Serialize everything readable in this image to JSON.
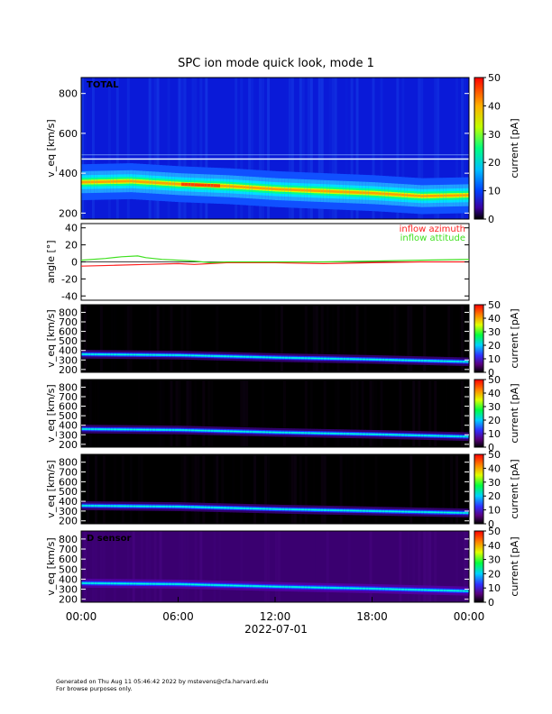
{
  "title": "SPC ion mode quick look, mode 1",
  "footer": {
    "line1": "Generated on Thu Aug 11 05:46:42 2022 by mstevens@cfa.harvard.edu",
    "line2": "For browse purposes only."
  },
  "chart_data": [
    {
      "type": "heatmap",
      "panel_label": "TOTAL",
      "ylabel": "v_eq [km/s]",
      "ylim": [
        170,
        880
      ],
      "yticks": [
        200,
        400,
        600,
        800
      ],
      "colorbar": {
        "label": "current [pA]",
        "ticks": [
          0,
          10,
          20,
          30,
          40,
          50
        ],
        "range": [
          0,
          50
        ],
        "colormap": "rainbow"
      },
      "background": "blue",
      "x": [
        "00:00",
        "06:00",
        "12:00",
        "18:00",
        "00:00"
      ],
      "peak_track_kms": [
        [
          0,
          355
        ],
        [
          3,
          360
        ],
        [
          6,
          345
        ],
        [
          9,
          335
        ],
        [
          12,
          320
        ],
        [
          15,
          310
        ],
        [
          18,
          300
        ],
        [
          21,
          285
        ],
        [
          24,
          290
        ]
      ]
    },
    {
      "type": "line",
      "ylabel": "angle [°]",
      "ylim": [
        -45,
        45
      ],
      "yticks": [
        -40,
        -20,
        0,
        20,
        40
      ],
      "legend": [
        "inflow azimuth",
        "inflow attitude"
      ],
      "legend_position": "top-right",
      "series": [
        {
          "name": "inflow azimuth",
          "color": "#ff2020",
          "x_hours": [
            0,
            2,
            4,
            6,
            7,
            8,
            9,
            12,
            15,
            18,
            21,
            24
          ],
          "values": [
            -5,
            -4,
            -3,
            -2,
            -3,
            -2,
            -1,
            -1,
            -2,
            -1,
            0,
            0
          ]
        },
        {
          "name": "inflow attitude",
          "color": "#40e020",
          "x_hours": [
            0,
            1.5,
            2.5,
            3.5,
            4,
            5,
            6,
            7,
            8,
            9,
            12,
            15,
            18,
            21,
            24
          ],
          "values": [
            2,
            4,
            6,
            7,
            5,
            3,
            2,
            1,
            -1,
            0,
            0,
            0,
            1,
            2,
            3
          ]
        }
      ]
    },
    {
      "type": "heatmap",
      "panel_label": "",
      "ylabel": "v_eq [km/s]",
      "ylim": [
        170,
        880
      ],
      "yticks": [
        200,
        300,
        400,
        500,
        600,
        700,
        800
      ],
      "colorbar": {
        "label": "current [pA]",
        "ticks": [
          0,
          10,
          20,
          30,
          40,
          50
        ],
        "range": [
          0,
          50
        ],
        "colormap": "heat"
      },
      "background": "black",
      "peak_track_kms": [
        [
          0,
          360
        ],
        [
          6,
          350
        ],
        [
          12,
          325
        ],
        [
          18,
          305
        ],
        [
          24,
          280
        ]
      ]
    },
    {
      "type": "heatmap",
      "panel_label": "",
      "ylabel": "v_eq [km/s]",
      "ylim": [
        170,
        880
      ],
      "yticks": [
        200,
        300,
        400,
        500,
        600,
        700,
        800
      ],
      "colorbar": {
        "label": "current [pA]",
        "ticks": [
          0,
          10,
          20,
          30,
          40,
          50
        ],
        "range": [
          0,
          50
        ],
        "colormap": "heat"
      },
      "background": "black",
      "peak_track_kms": [
        [
          0,
          360
        ],
        [
          6,
          350
        ],
        [
          12,
          325
        ],
        [
          18,
          305
        ],
        [
          24,
          280
        ]
      ]
    },
    {
      "type": "heatmap",
      "panel_label": "",
      "ylabel": "v_eq [km/s]",
      "ylim": [
        170,
        880
      ],
      "yticks": [
        200,
        300,
        400,
        500,
        600,
        700,
        800
      ],
      "colorbar": {
        "label": "current [pA]",
        "ticks": [
          0,
          10,
          20,
          30,
          40,
          50
        ],
        "range": [
          0,
          50
        ],
        "colormap": "heat"
      },
      "background": "black",
      "peak_track_kms": [
        [
          0,
          355
        ],
        [
          6,
          345
        ],
        [
          12,
          320
        ],
        [
          18,
          300
        ],
        [
          24,
          280
        ]
      ]
    },
    {
      "type": "heatmap",
      "panel_label": "D sensor",
      "ylabel": "v_eq [km/s]",
      "ylim": [
        170,
        880
      ],
      "yticks": [
        200,
        300,
        400,
        500,
        600,
        700,
        800
      ],
      "colorbar": {
        "label": "current [pA]",
        "ticks": [
          0,
          10,
          20,
          30,
          40,
          50
        ],
        "range": [
          0,
          50
        ],
        "colormap": "heat"
      },
      "background": "purple",
      "peak_track_kms": [
        [
          0,
          360
        ],
        [
          6,
          350
        ],
        [
          12,
          325
        ],
        [
          18,
          305
        ],
        [
          24,
          280
        ]
      ]
    }
  ],
  "xaxis": {
    "ticks": [
      "00:00",
      "06:00",
      "12:00",
      "18:00",
      "00:00"
    ],
    "date": "2022-07-01"
  }
}
